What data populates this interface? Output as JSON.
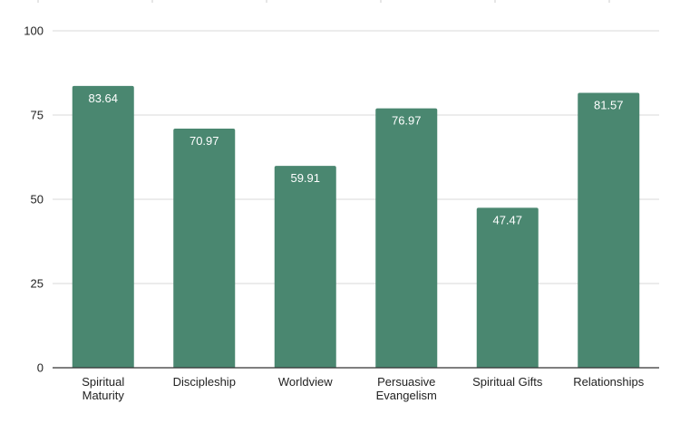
{
  "chart_data": {
    "type": "bar",
    "categories": [
      "Spiritual Maturity",
      "Discipleship",
      "Worldview",
      "Persuasive Evangelism",
      "Spiritual Gifts",
      "Relationships"
    ],
    "category_label_lines": [
      [
        "Spiritual",
        "Maturity"
      ],
      [
        "Discipleship"
      ],
      [
        "Worldview"
      ],
      [
        "Persuasive",
        "Evangelism"
      ],
      [
        "Spiritual Gifts"
      ],
      [
        "Relationships"
      ]
    ],
    "values": [
      83.64,
      70.97,
      59.91,
      76.97,
      47.47,
      81.57
    ],
    "data_labels": [
      "83.64",
      "70.97",
      "59.91",
      "76.97",
      "47.47",
      "81.57"
    ],
    "title": "",
    "xlabel": "",
    "ylabel": "",
    "ylim": [
      0,
      100
    ],
    "yticks": [
      0,
      25,
      50,
      75,
      100
    ],
    "ytick_labels": [
      "0",
      "25",
      "50",
      "75",
      "100"
    ],
    "grid": true,
    "legend": "none",
    "bar_color": "#4a8770",
    "grid_color": "#d9d9d9",
    "axis_color": "#333333"
  }
}
